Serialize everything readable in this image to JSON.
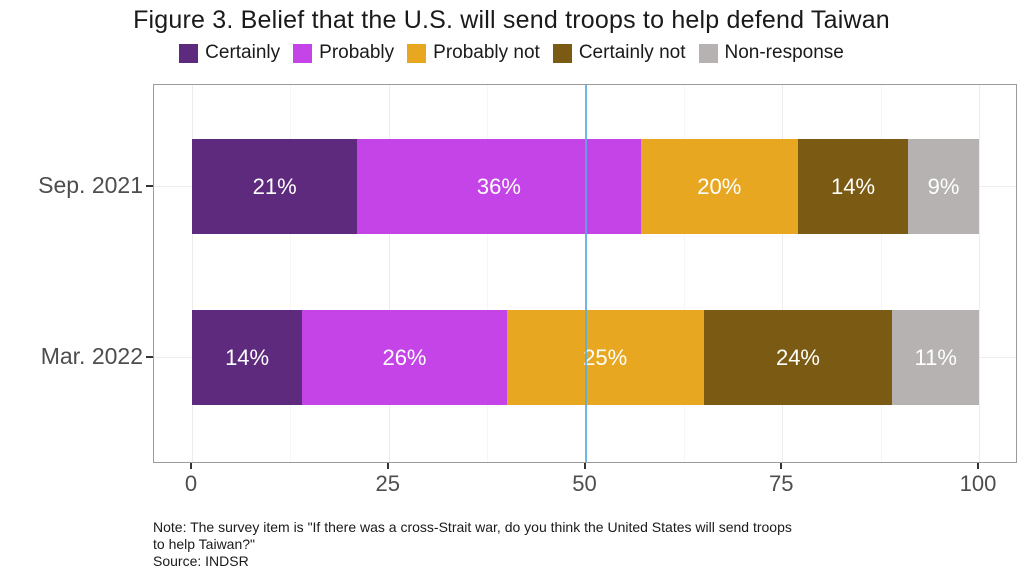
{
  "title": "Figure 3. Belief that the U.S. will send troops to help defend Taiwan",
  "note_lines": [
    "Note: The survey item is \"If there was a cross-Strait war, do you think the United States will send troops",
    "to help Taiwan?\"",
    "Source: INDSR"
  ],
  "colors": {
    "certainly": "#5e2a7d",
    "probably": "#c444e8",
    "probably_not": "#e7a720",
    "certainly_not": "#7b5b13",
    "non_response": "#b5b2b1",
    "reference_line": "#56ade6",
    "grid_major": "#ececec",
    "grid_minor": "#f6f6f6",
    "panel_border": "#9b9b9b",
    "axis_text": "#4d4d4d",
    "bar_label_text": "#ffffff"
  },
  "chart_data": {
    "type": "bar",
    "orientation": "horizontal",
    "stacked": true,
    "title": "Figure 3. Belief that the U.S. will send troops to help defend Taiwan",
    "categories": [
      "Sep. 2021",
      "Mar. 2022"
    ],
    "series": [
      {
        "name": "Certainly",
        "color": "#5e2a7d",
        "values": [
          21,
          14
        ]
      },
      {
        "name": "Probably",
        "color": "#c444e8",
        "values": [
          36,
          26
        ]
      },
      {
        "name": "Probably not",
        "color": "#e7a720",
        "values": [
          20,
          25
        ]
      },
      {
        "name": "Certainly not",
        "color": "#7b5b13",
        "values": [
          14,
          24
        ]
      },
      {
        "name": "Non-response",
        "color": "#b5b2b1",
        "values": [
          9,
          11
        ]
      }
    ],
    "value_suffix": "%",
    "xlabel": "",
    "ylabel": "",
    "xlim": [
      0,
      100
    ],
    "x_major_ticks": [
      0,
      25,
      50,
      75,
      100
    ],
    "x_minor_ticks": [
      12.5,
      37.5,
      62.5,
      87.5
    ],
    "reference_line_x": 50,
    "grid": true,
    "legend_position": "top"
  }
}
